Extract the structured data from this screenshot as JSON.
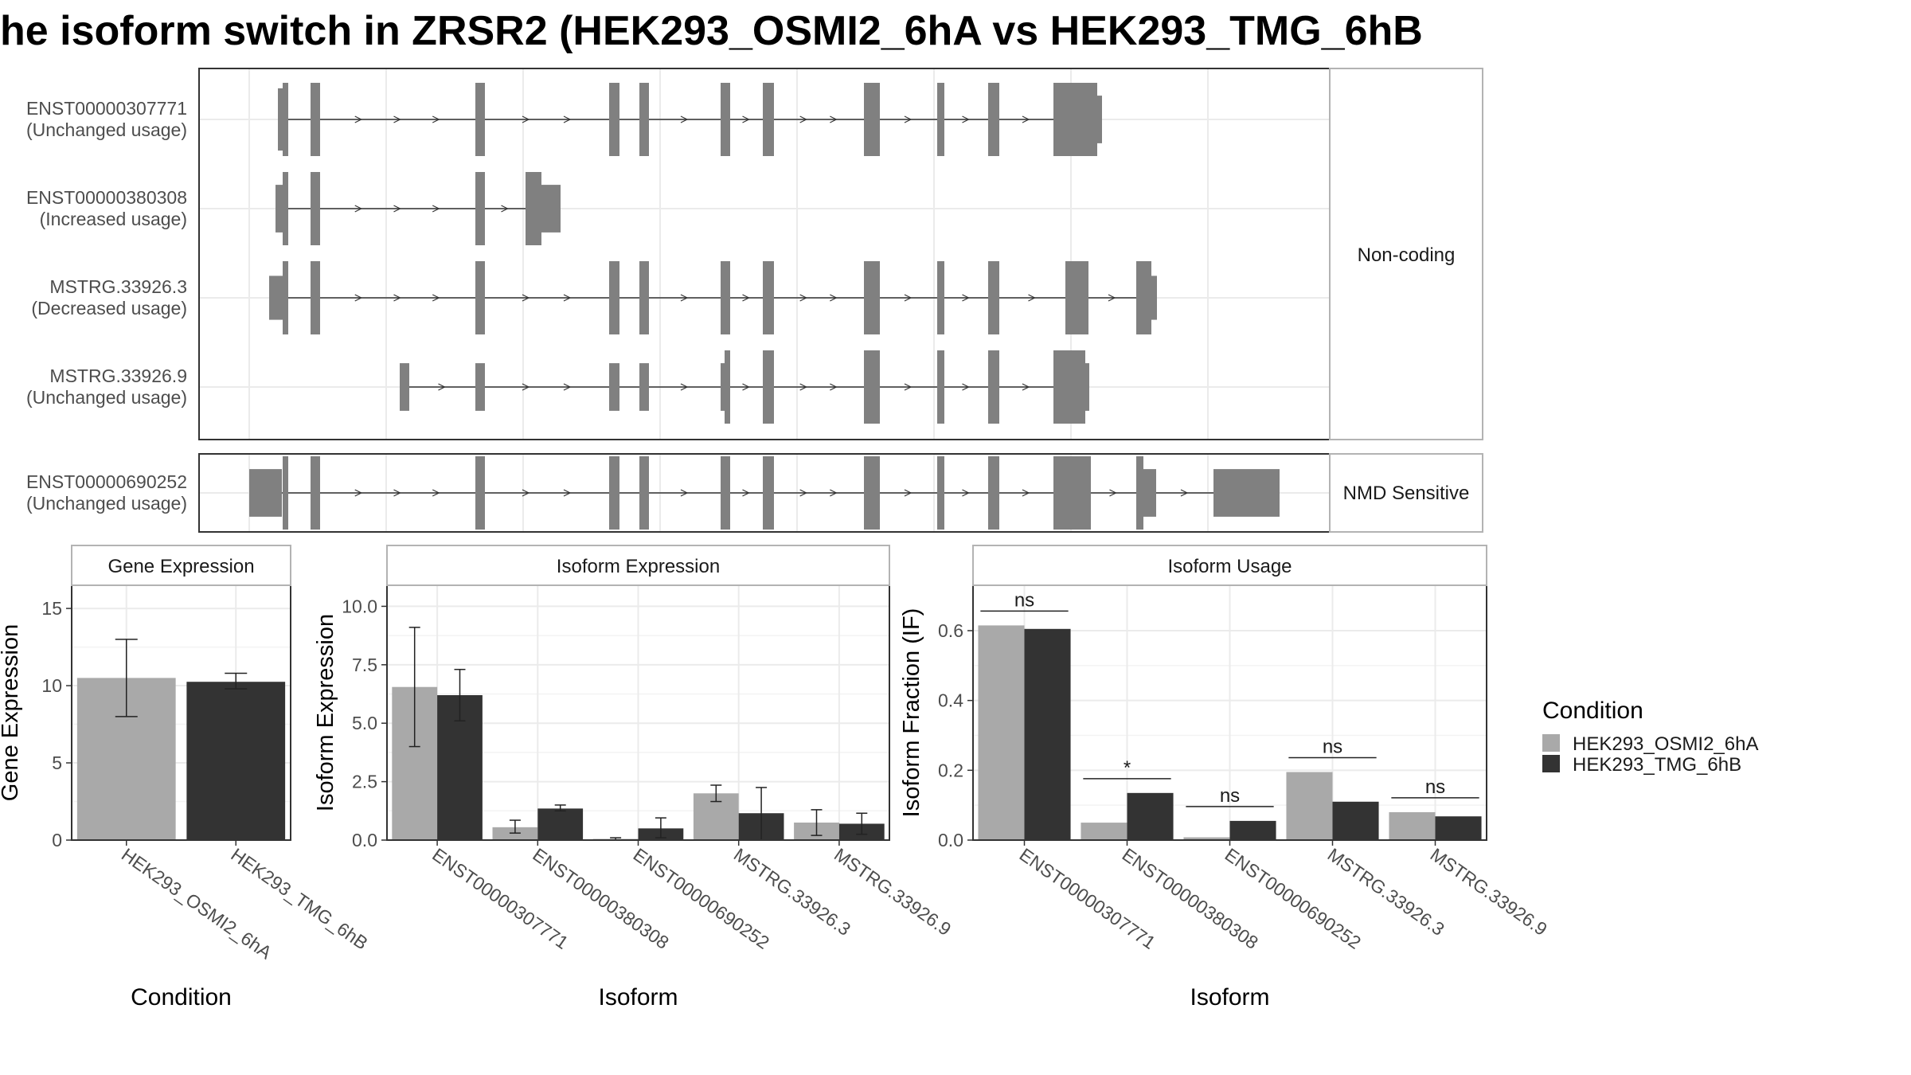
{
  "title": "he isoform switch in ZRSR2 (HEK293_OSMI2_6hA vs HEK293_TMG_6hB",
  "colors": {
    "HEK293_OSMI2_6hA": "#a9a9a9",
    "HEK293_TMG_6hB": "#333333",
    "exon": "#808080",
    "grid": "#ebebeb",
    "strip_bg": "#ffffff",
    "strip_border": "#b3b3b3"
  },
  "legend": {
    "title": "Condition",
    "items": [
      "HEK293_OSMI2_6hA",
      "HEK293_TMG_6hB"
    ]
  },
  "chart_data": [
    {
      "type": "transcript-structure",
      "facets": [
        {
          "strip": "Non-coding",
          "transcripts": [
            {
              "id": "ENST00000307771",
              "usage": "(Unchanged usage)"
            },
            {
              "id": "ENST00000380308",
              "usage": "(Increased usage)"
            },
            {
              "id": "MSTRG.33926.3",
              "usage": "(Decreased usage)"
            },
            {
              "id": "MSTRG.33926.9",
              "usage": "(Unchanged usage)"
            }
          ]
        },
        {
          "strip": "NMD Sensitive",
          "transcripts": [
            {
              "id": "ENST00000690252",
              "usage": "(Unchanged usage)"
            }
          ]
        }
      ]
    },
    {
      "type": "bar",
      "title": "Gene Expression",
      "xlabel": "Condition",
      "ylabel": "Gene Expression",
      "ylim": [
        0,
        16.5
      ],
      "yticks": [
        "0",
        "5",
        "10",
        "15"
      ],
      "ytick_values": [
        0,
        5,
        10,
        15
      ],
      "categories": [
        "HEK293_OSMI2_6hA",
        "HEK293_TMG_6hB"
      ],
      "values": [
        10.5,
        10.25
      ],
      "errors": [
        [
          8.0,
          13.0
        ],
        [
          9.8,
          10.8
        ]
      ]
    },
    {
      "type": "bar",
      "title": "Isoform Expression",
      "xlabel": "Isoform",
      "ylabel": "Isoform Expression",
      "ylim": [
        0,
        10.9
      ],
      "yticks": [
        "0.0",
        "2.5",
        "5.0",
        "7.5",
        "10.0"
      ],
      "ytick_values": [
        0,
        2.5,
        5,
        7.5,
        10
      ],
      "categories": [
        "ENST00000307771",
        "ENST00000380308",
        "ENST00000690252",
        "MSTRG.33926.3",
        "MSTRG.33926.9"
      ],
      "series": [
        {
          "name": "HEK293_OSMI2_6hA",
          "values": [
            6.55,
            0.55,
            0.05,
            2.0,
            0.75
          ],
          "errors": [
            [
              4.0,
              9.1
            ],
            [
              0.3,
              0.85
            ],
            [
              0.0,
              0.1
            ],
            [
              1.65,
              2.35
            ],
            [
              0.2,
              1.3
            ]
          ]
        },
        {
          "name": "HEK293_TMG_6hB",
          "values": [
            6.2,
            1.35,
            0.5,
            1.15,
            0.7
          ],
          "errors": [
            [
              5.1,
              7.3
            ],
            [
              1.25,
              1.5
            ],
            [
              0.1,
              0.95
            ],
            [
              0.0,
              2.25
            ],
            [
              0.25,
              1.15
            ]
          ]
        }
      ]
    },
    {
      "type": "bar",
      "title": "Isoform Usage",
      "xlabel": "Isoform",
      "ylabel": "Isoform Fraction (IF)",
      "ylim": [
        0,
        0.73
      ],
      "yticks": [
        "0.0",
        "0.2",
        "0.4",
        "0.6"
      ],
      "ytick_values": [
        0,
        0.2,
        0.4,
        0.6
      ],
      "categories": [
        "ENST00000307771",
        "ENST00000380308",
        "ENST00000690252",
        "MSTRG.33926.3",
        "MSTRG.33926.9"
      ],
      "series": [
        {
          "name": "HEK293_OSMI2_6hA",
          "values": [
            0.615,
            0.05,
            0.008,
            0.195,
            0.08
          ]
        },
        {
          "name": "HEK293_TMG_6hB",
          "values": [
            0.605,
            0.135,
            0.055,
            0.11,
            0.068
          ]
        }
      ],
      "significance": [
        "ns",
        "*",
        "ns",
        "ns",
        "ns"
      ]
    }
  ]
}
